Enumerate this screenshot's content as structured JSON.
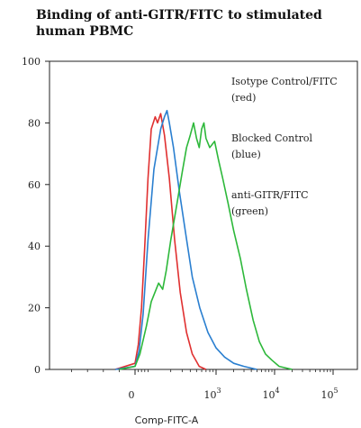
{
  "chart_data": {
    "type": "line",
    "title": "Binding of anti-GITR/FITC to stimulated human PBMC",
    "xlabel": "Comp-FITC-A",
    "ylabel": "",
    "x_scale": "biexponential",
    "xlim": [
      -100,
      100000
    ],
    "ylim": [
      0,
      100
    ],
    "y_ticks": [
      0,
      20,
      40,
      60,
      80,
      100
    ],
    "x_ticks": [
      {
        "value": 0,
        "label": "0"
      },
      {
        "value": 1000,
        "label": "10",
        "sup": "3"
      },
      {
        "value": 10000,
        "label": "10",
        "sup": "4"
      },
      {
        "value": 100000,
        "label": "10",
        "sup": "5"
      }
    ],
    "legend": [
      {
        "line1": "Isotype Control/FITC",
        "line2": "(red)"
      },
      {
        "line1": "Blocked Control",
        "line2": "(blue)"
      },
      {
        "line1": "anti-GITR/FITC",
        "line2": "(green)"
      }
    ],
    "series": [
      {
        "color": "#e03030",
        "points": [
          [
            -25,
            0
          ],
          [
            0,
            2
          ],
          [
            20,
            8
          ],
          [
            40,
            20
          ],
          [
            60,
            40
          ],
          [
            80,
            62
          ],
          [
            100,
            78
          ],
          [
            115,
            82
          ],
          [
            125,
            80
          ],
          [
            140,
            83
          ],
          [
            160,
            76
          ],
          [
            190,
            62
          ],
          [
            230,
            42
          ],
          [
            280,
            25
          ],
          [
            350,
            12
          ],
          [
            430,
            5
          ],
          [
            550,
            1
          ],
          [
            700,
            0
          ]
        ]
      },
      {
        "color": "#2a7fd0",
        "points": [
          [
            -25,
            0
          ],
          [
            0,
            1
          ],
          [
            25,
            6
          ],
          [
            50,
            18
          ],
          [
            80,
            42
          ],
          [
            110,
            65
          ],
          [
            140,
            78
          ],
          [
            160,
            82
          ],
          [
            175,
            84
          ],
          [
            190,
            80
          ],
          [
            220,
            72
          ],
          [
            270,
            58
          ],
          [
            340,
            44
          ],
          [
            430,
            30
          ],
          [
            560,
            20
          ],
          [
            750,
            12
          ],
          [
            1000,
            7
          ],
          [
            1400,
            4
          ],
          [
            2000,
            2
          ],
          [
            3000,
            1
          ],
          [
            5000,
            0
          ]
        ]
      },
      {
        "color": "#2db83a",
        "points": [
          [
            -20,
            0
          ],
          [
            0,
            1
          ],
          [
            30,
            5
          ],
          [
            70,
            14
          ],
          [
            100,
            22
          ],
          [
            130,
            28
          ],
          [
            150,
            26
          ],
          [
            170,
            32
          ],
          [
            200,
            42
          ],
          [
            250,
            54
          ],
          [
            300,
            64
          ],
          [
            350,
            72
          ],
          [
            400,
            76
          ],
          [
            450,
            80
          ],
          [
            500,
            75
          ],
          [
            550,
            72
          ],
          [
            600,
            78
          ],
          [
            650,
            80
          ],
          [
            700,
            75
          ],
          [
            800,
            72
          ],
          [
            950,
            74
          ],
          [
            1100,
            68
          ],
          [
            1300,
            62
          ],
          [
            1600,
            54
          ],
          [
            2000,
            45
          ],
          [
            2600,
            36
          ],
          [
            3300,
            26
          ],
          [
            4300,
            16
          ],
          [
            5500,
            9
          ],
          [
            7000,
            5
          ],
          [
            9000,
            3
          ],
          [
            12000,
            1
          ],
          [
            20000,
            0
          ]
        ]
      }
    ]
  }
}
